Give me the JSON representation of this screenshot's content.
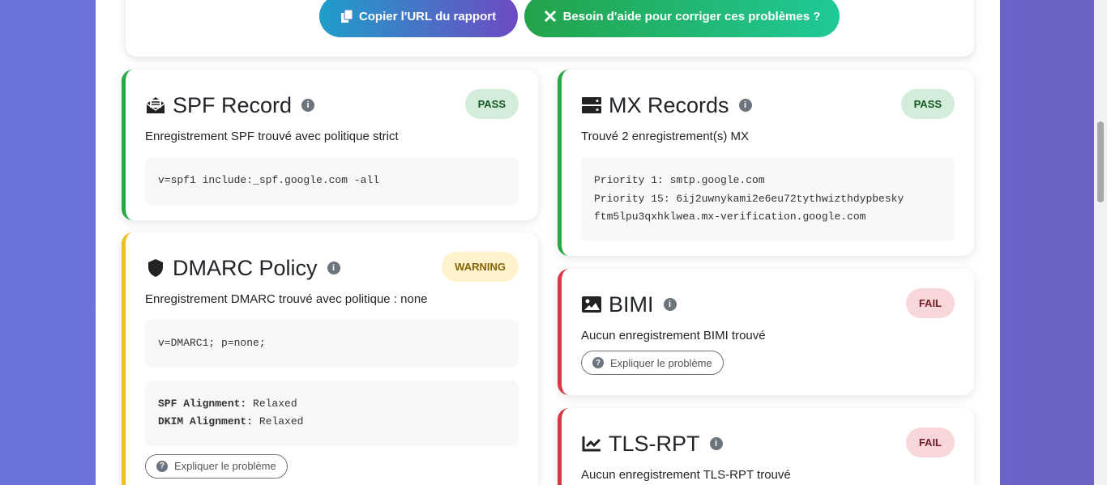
{
  "actions": {
    "copy_url": "Copier l'URL du rapport",
    "help": "Besoin d'aide pour corriger ces problèmes ?"
  },
  "explain_label": "Expliquer le problème",
  "cards": {
    "spf": {
      "title": "SPF Record",
      "status": "PASS",
      "desc": "Enregistrement SPF trouvé avec politique strict",
      "code": "v=spf1 include:_spf.google.com -all",
      "icon": "envelope-open-text-icon"
    },
    "dmarc": {
      "title": "DMARC Policy",
      "status": "WARNING",
      "desc": "Enregistrement DMARC trouvé avec politique : none",
      "code": "v=DMARC1; p=none;",
      "spf_alignment_label": "SPF Alignment:",
      "spf_alignment": "Relaxed",
      "dkim_alignment_label": "DKIM Alignment:",
      "dkim_alignment": "Relaxed",
      "icon": "shield-icon"
    },
    "mx": {
      "title": "MX Records",
      "status": "PASS",
      "desc": "Trouvé 2 enregistrement(s) MX",
      "lines": [
        "Priority 1: smtp.google.com",
        "Priority 15: 6ij2uwnykami2e6eu72tythwizthdypbesky",
        "ftm5lpu3qxhklwea.mx-verification.google.com"
      ],
      "icon": "server-icon"
    },
    "bimi": {
      "title": "BIMI",
      "status": "FAIL",
      "desc": "Aucun enregistrement BIMI trouvé",
      "icon": "image-icon"
    },
    "tlsrpt": {
      "title": "TLS-RPT",
      "status": "FAIL",
      "desc": "Aucun enregistrement TLS-RPT trouvé",
      "icon": "chart-line-icon"
    }
  },
  "colors": {
    "pass": "#28a745",
    "warning": "#f0c020",
    "fail": "#dc3545"
  }
}
